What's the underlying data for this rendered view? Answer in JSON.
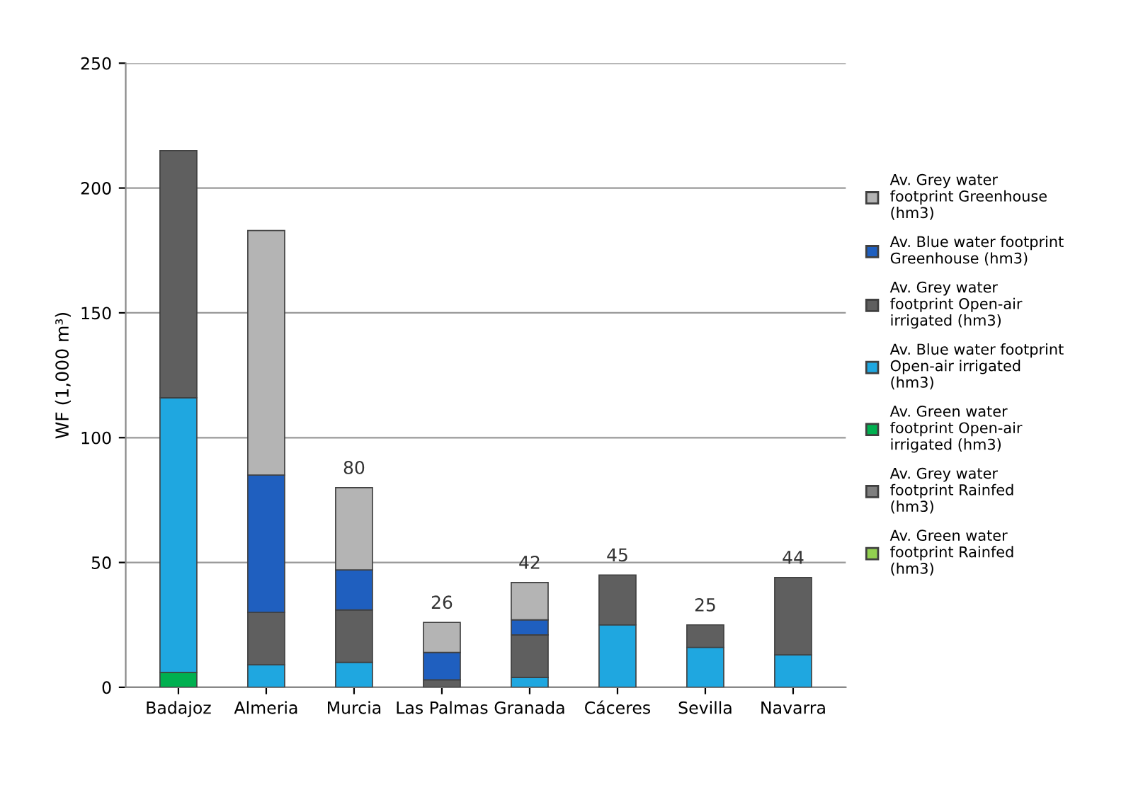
{
  "chart_data": {
    "type": "bar",
    "stacked": true,
    "ylabel": "WF (1,000 m³)",
    "categories": [
      "Badajoz",
      "Almeria",
      "Murcia",
      "Las Palmas",
      "Granada",
      "Cáceres",
      "Sevilla",
      "Navarra"
    ],
    "series": [
      {
        "name": "Av. Green water\nfootprint Rainfed\n(hm3)",
        "color": "#92d050",
        "values": [
          0,
          0,
          0,
          0,
          0,
          0,
          0,
          0
        ]
      },
      {
        "name": "Av. Grey water\nfootprint Rainfed\n(hm3)",
        "color": "#7f7f7f",
        "values": [
          0,
          0,
          0,
          0,
          0,
          0,
          0,
          0
        ]
      },
      {
        "name": "Av. Green water\nfootprint Open-air\nirrigated (hm3)",
        "color": "#00b050",
        "values": [
          6,
          0,
          0,
          0,
          0,
          0,
          0,
          0
        ]
      },
      {
        "name": "Av. Blue water footprint\nOpen-air irrigated\n(hm3)",
        "color": "#1fa7e0",
        "values": [
          110,
          9,
          10,
          0,
          4,
          25,
          16,
          13
        ]
      },
      {
        "name": "Av. Grey water\nfootprint Open-air\nirrigated (hm3)",
        "color": "#5f5f5f",
        "values": [
          99,
          21,
          21,
          3,
          17,
          20,
          9,
          31
        ]
      },
      {
        "name": "Av. Blue water footprint\nGreenhouse (hm3)",
        "color": "#1f5fbf",
        "values": [
          0,
          55,
          16,
          11,
          6,
          0,
          0,
          0
        ]
      },
      {
        "name": "Av. Grey water\nfootprint Greenhouse\n(hm3)",
        "color": "#b4b4b4",
        "values": [
          0,
          98,
          33,
          12,
          15,
          0,
          0,
          0
        ]
      }
    ],
    "totals": [
      null,
      null,
      "80",
      "26",
      "42",
      "45",
      "25",
      "44"
    ],
    "ylim": [
      0,
      250
    ],
    "yticks": [
      0,
      50,
      100,
      150,
      200,
      250
    ],
    "grid": "y",
    "legend": "right"
  }
}
